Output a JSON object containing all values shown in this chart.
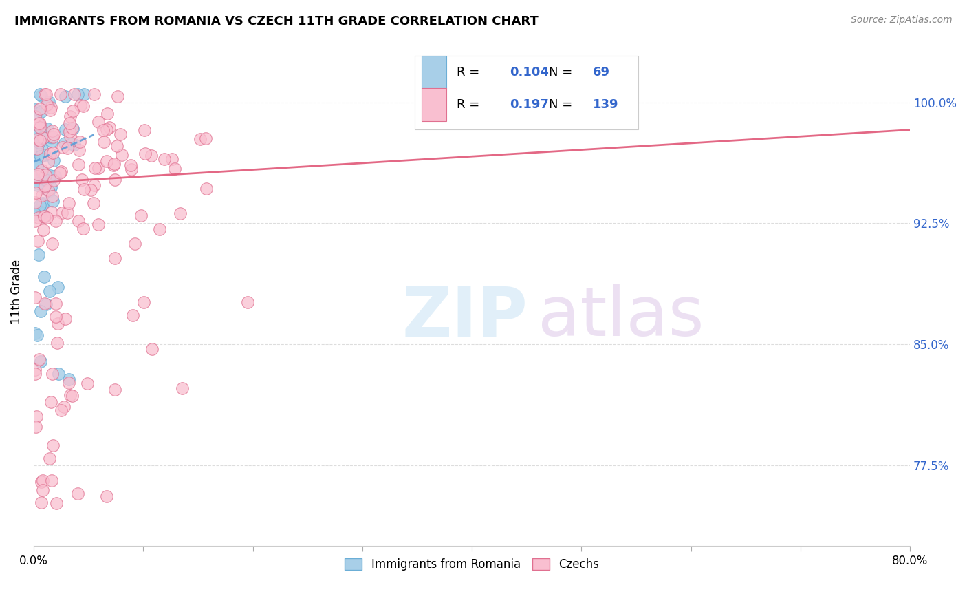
{
  "title": "IMMIGRANTS FROM ROMANIA VS CZECH 11TH GRADE CORRELATION CHART",
  "source": "Source: ZipAtlas.com",
  "ylabel": "11th Grade",
  "ytick_labels": [
    "77.5%",
    "85.0%",
    "92.5%",
    "100.0%"
  ],
  "ytick_values": [
    0.775,
    0.85,
    0.925,
    1.0
  ],
  "xmin": 0.0,
  "xmax": 0.8,
  "ymin": 0.725,
  "ymax": 1.04,
  "legend_R_blue": "0.104",
  "legend_N_blue": "69",
  "legend_R_pink": "0.197",
  "legend_N_pink": "139",
  "blue_color": "#a8cfe8",
  "blue_edge_color": "#6baed6",
  "pink_color": "#f9bfd0",
  "pink_edge_color": "#e07090",
  "blue_line_color": "#5b9bd5",
  "pink_line_color": "#e05878",
  "background_color": "#ffffff",
  "legend_text_color": "#3366cc",
  "grid_color": "#dddddd",
  "right_tick_color": "#3366cc"
}
